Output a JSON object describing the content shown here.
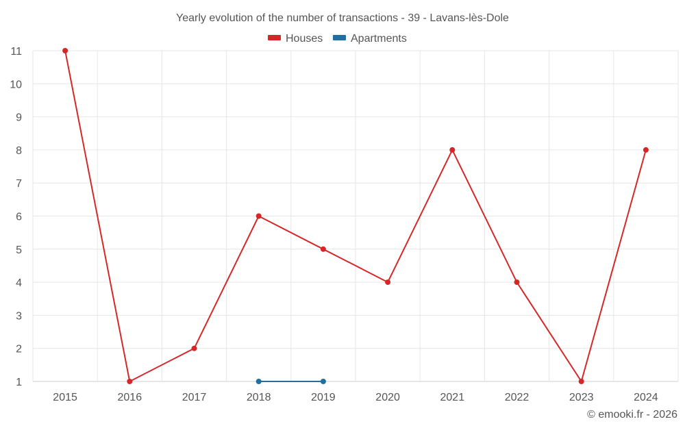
{
  "chart_data": {
    "type": "line",
    "title": "Yearly evolution of the number of transactions - 39 - Lavans-lès-Dole",
    "categories": [
      "2015",
      "2016",
      "2017",
      "2018",
      "2019",
      "2020",
      "2021",
      "2022",
      "2023",
      "2024"
    ],
    "ylim": [
      1,
      11
    ],
    "yticks": [
      "1",
      "2",
      "3",
      "4",
      "5",
      "6",
      "7",
      "8",
      "9",
      "10",
      "11"
    ],
    "grid": true,
    "legend_position": "top-center",
    "series": [
      {
        "name": "Houses",
        "color": "#d62728",
        "values": [
          11,
          1,
          2,
          6,
          5,
          4,
          8,
          4,
          1,
          8
        ]
      },
      {
        "name": "Apartments",
        "color": "#1f6fa0",
        "values": [
          null,
          null,
          null,
          1,
          1,
          null,
          null,
          null,
          null,
          null
        ]
      }
    ],
    "credit": "© emooki.fr - 2026"
  }
}
